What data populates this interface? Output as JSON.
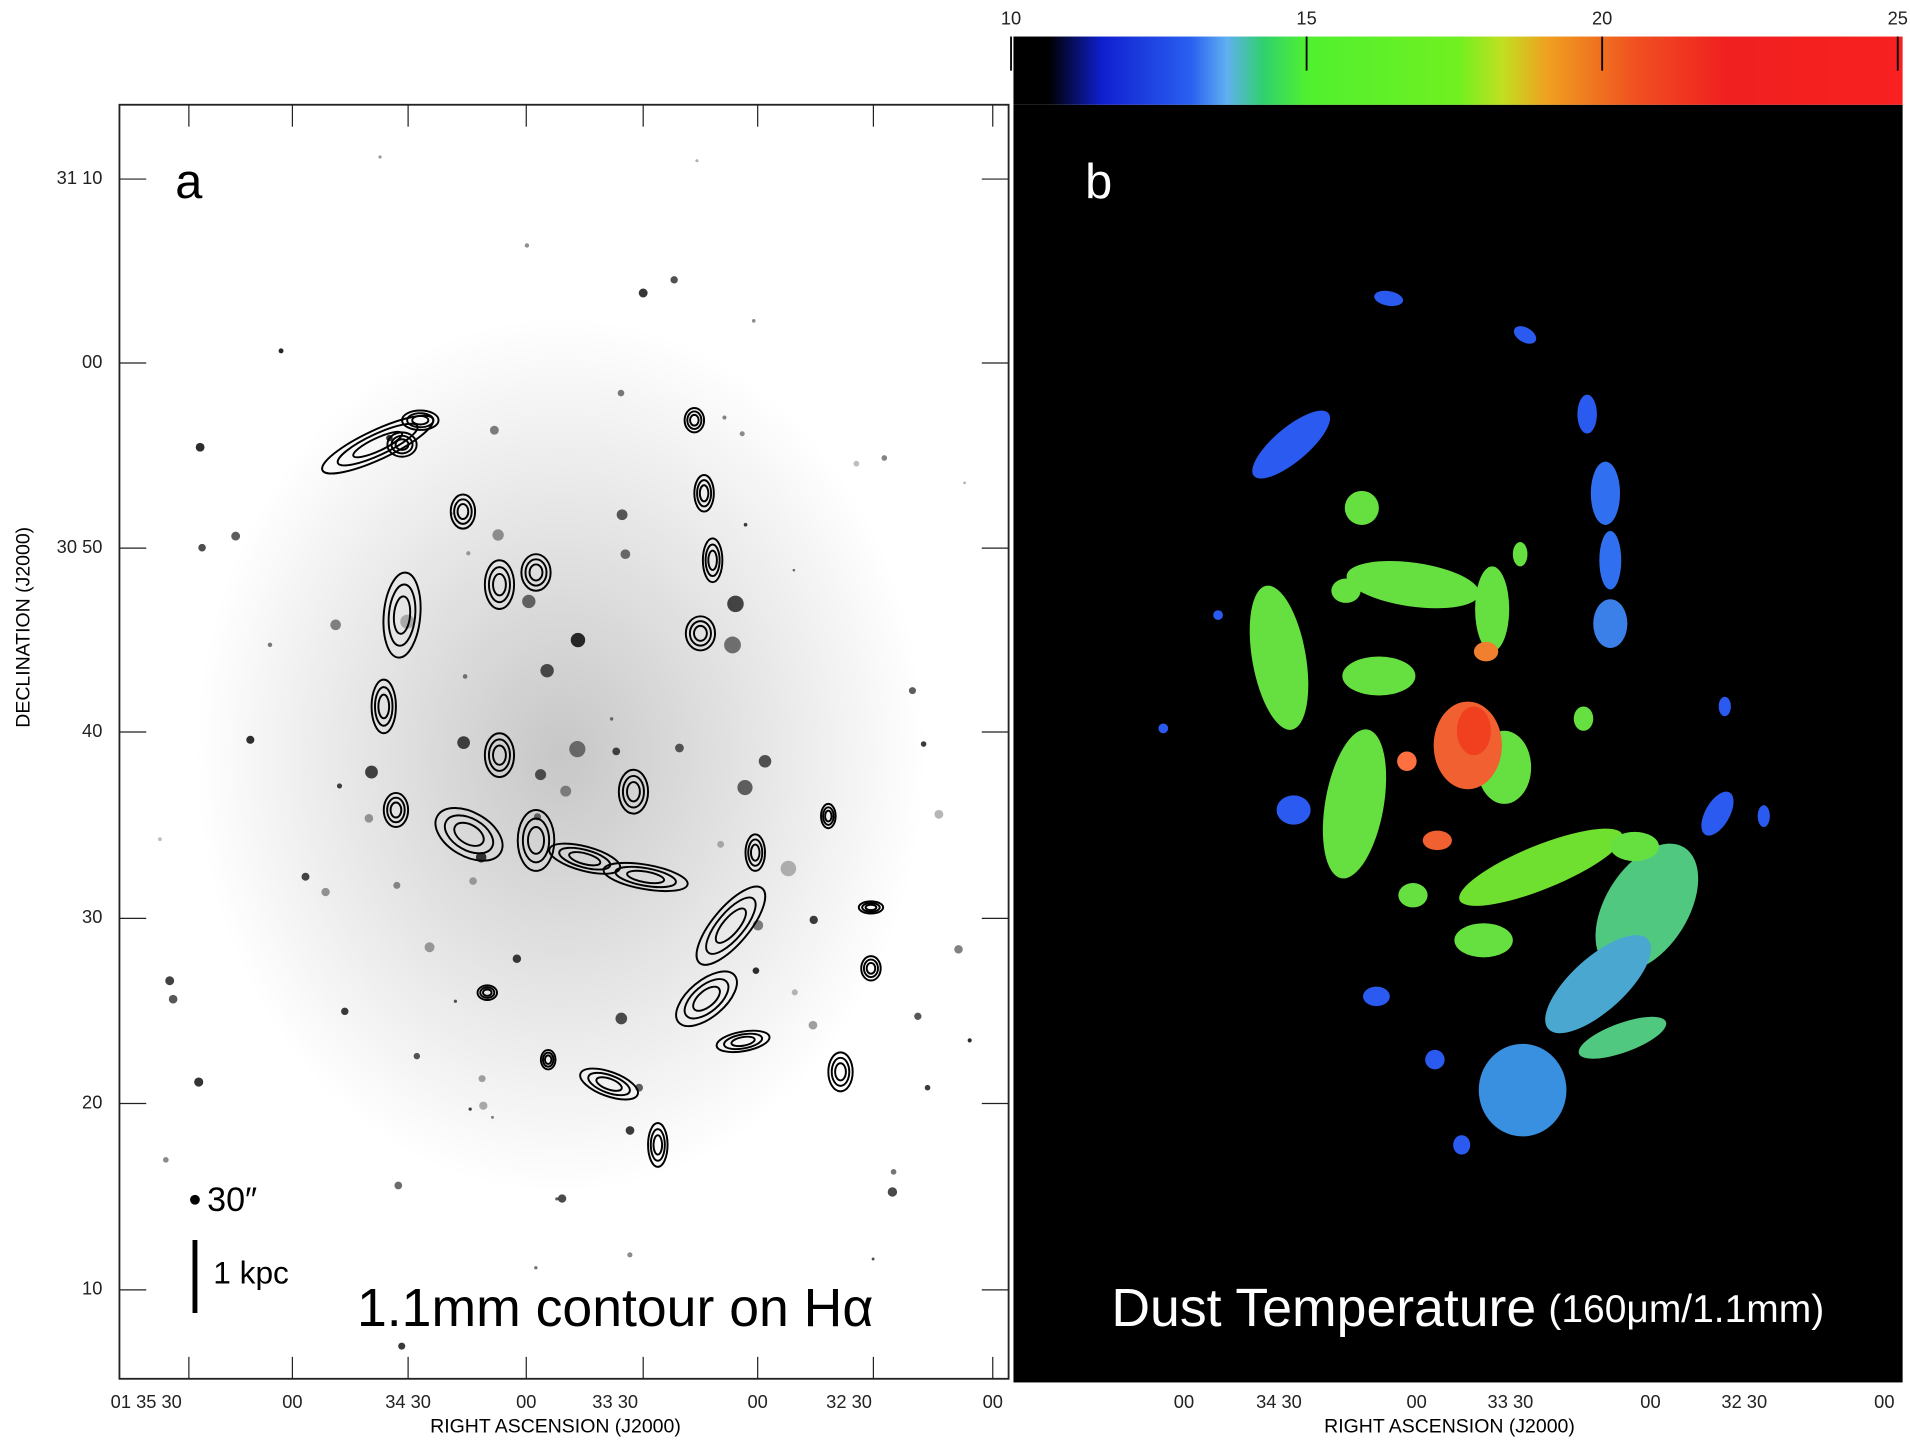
{
  "panel_a": {
    "label": "a",
    "caption": "1.1mm contour on Hα",
    "beam_label": "30″",
    "scale_label": "1 kpc",
    "y_axis_title": "DECLINATION (J2000)",
    "x_axis_title": "RIGHT ASCENSION (J2000)",
    "yticks": [
      "31 10",
      "00",
      "30 50",
      "40",
      "30",
      "20",
      "10"
    ],
    "xticks": [
      "01 35 30",
      "00",
      "34 30",
      "00",
      "33 30",
      "00",
      "32 30",
      "00"
    ]
  },
  "panel_b": {
    "label": "b",
    "caption_main": "Dust Temperature",
    "caption_sub": "(160μm/1.1mm)",
    "x_axis_title": "RIGHT ASCENSION (J2000)",
    "xticks": [
      "00",
      "34 30",
      "00",
      "33 30",
      "00",
      "32 30",
      "00"
    ]
  },
  "colorbar": {
    "range": [
      10,
      25
    ],
    "ticks": [
      10,
      15,
      20,
      25
    ]
  }
}
